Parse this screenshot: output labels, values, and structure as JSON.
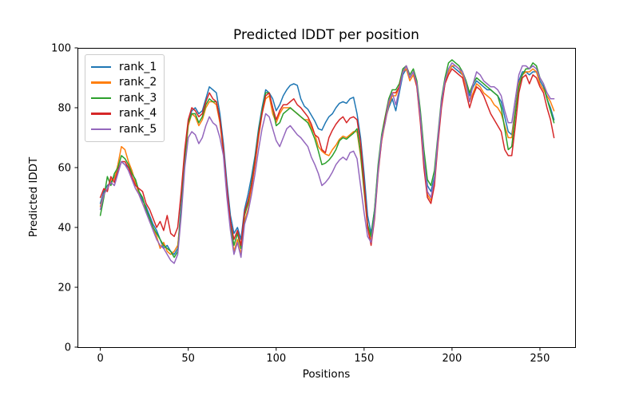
{
  "chart_data": {
    "type": "line",
    "title": "Predicted lDDT per position",
    "xlabel": "Positions",
    "ylabel": "Predicted lDDT",
    "xlim": [
      -13,
      270
    ],
    "ylim": [
      0,
      100
    ],
    "xticks": [
      0,
      50,
      100,
      150,
      200,
      250
    ],
    "yticks": [
      0,
      20,
      40,
      60,
      80,
      100
    ],
    "grid": false,
    "legend_position": "upper left",
    "x": [
      0,
      2,
      4,
      6,
      8,
      10,
      12,
      14,
      16,
      18,
      20,
      22,
      24,
      26,
      28,
      30,
      32,
      34,
      36,
      38,
      40,
      42,
      44,
      46,
      48,
      50,
      52,
      54,
      56,
      58,
      60,
      62,
      64,
      66,
      68,
      70,
      72,
      74,
      76,
      78,
      80,
      82,
      84,
      86,
      88,
      90,
      92,
      94,
      96,
      98,
      100,
      102,
      104,
      106,
      108,
      110,
      112,
      114,
      116,
      118,
      120,
      122,
      124,
      126,
      128,
      130,
      132,
      134,
      136,
      138,
      140,
      142,
      144,
      146,
      148,
      150,
      152,
      154,
      156,
      158,
      160,
      162,
      164,
      166,
      168,
      170,
      172,
      174,
      176,
      178,
      180,
      182,
      184,
      186,
      188,
      190,
      192,
      194,
      196,
      198,
      200,
      202,
      204,
      206,
      208,
      210,
      212,
      214,
      216,
      218,
      220,
      222,
      224,
      226,
      228,
      230,
      232,
      234,
      236,
      238,
      240,
      242,
      244,
      246,
      248,
      250,
      252,
      254,
      256,
      258
    ],
    "series": [
      {
        "name": "rank_1",
        "color": "#1f77b4",
        "values": [
          48,
          52,
          54,
          55,
          57,
          59,
          62,
          61,
          60,
          58,
          56,
          52,
          49,
          47,
          44,
          41,
          39,
          36,
          33,
          34,
          32,
          31,
          33,
          48,
          65,
          75,
          79,
          80,
          78,
          79,
          83,
          87,
          86,
          85,
          78,
          68,
          55,
          44,
          38,
          40,
          36,
          46,
          51,
          57,
          64,
          73,
          80,
          86,
          85,
          83,
          79,
          81,
          84,
          86,
          87.5,
          88,
          87.5,
          83,
          80.5,
          79.5,
          77.5,
          75.5,
          73,
          72.5,
          75,
          77,
          78,
          80,
          81.5,
          82,
          81.5,
          83,
          83.5,
          78,
          70,
          58,
          44,
          38,
          46,
          60,
          70,
          76,
          80,
          83,
          79,
          85,
          91,
          93,
          90,
          92,
          88,
          78,
          64,
          54,
          52,
          57,
          70,
          82,
          89,
          92,
          94,
          93,
          92,
          91,
          88,
          84,
          87,
          89,
          88,
          87,
          86,
          86,
          85,
          84,
          82,
          77,
          72,
          71,
          80,
          89,
          92,
          92,
          91,
          92,
          92,
          89,
          87,
          83,
          80,
          76
        ]
      },
      {
        "name": "rank_2",
        "color": "#ff7f0e",
        "values": [
          47,
          51,
          53,
          56,
          56,
          61,
          67,
          66,
          62,
          59,
          55,
          51,
          48,
          46,
          42,
          40,
          37,
          33,
          35,
          32,
          31,
          32,
          34,
          45,
          62,
          74,
          78,
          77,
          74,
          76,
          80,
          82,
          82,
          81,
          75,
          65,
          51,
          40,
          32,
          36,
          31,
          42,
          46,
          53,
          61,
          70,
          78,
          83,
          84,
          78,
          75,
          78,
          80,
          80,
          80,
          79,
          78,
          77,
          76,
          76,
          73.5,
          71,
          67,
          65.5,
          64.5,
          64,
          66,
          67.5,
          69.5,
          70.5,
          70,
          71,
          72,
          72,
          64,
          52,
          40,
          36,
          44,
          59,
          69,
          75,
          81,
          84,
          84,
          87,
          92,
          93,
          89,
          91,
          87,
          76,
          61,
          51,
          49,
          55,
          69,
          81,
          88,
          92,
          94,
          94,
          93,
          91,
          87,
          82,
          85,
          88,
          87,
          85,
          84,
          83,
          81,
          80,
          78,
          74,
          70,
          70,
          79,
          88,
          91,
          92,
          92,
          93,
          92,
          88,
          86,
          84,
          82,
          79
        ]
      },
      {
        "name": "rank_3",
        "color": "#2ca02c",
        "values": [
          44,
          50,
          57,
          54,
          58,
          60,
          64,
          63,
          61,
          58,
          56,
          52,
          50,
          46,
          43,
          40,
          38,
          36,
          34,
          33,
          32,
          30,
          32,
          46,
          63,
          75,
          78,
          78,
          75,
          77,
          81,
          83,
          82,
          82,
          76,
          66,
          52,
          41,
          34,
          38,
          33,
          44,
          48,
          55,
          63,
          72,
          79,
          85,
          85,
          80,
          74,
          75,
          78,
          79,
          80,
          79,
          78,
          77,
          76,
          75,
          72.5,
          69.5,
          65.5,
          61,
          61.5,
          62.5,
          64,
          66,
          69,
          70,
          69.5,
          70.5,
          71.5,
          73,
          65,
          53,
          41,
          37,
          46,
          61,
          71,
          77,
          83,
          86,
          86,
          88,
          93,
          94,
          91,
          93,
          89,
          79,
          66,
          56,
          54,
          59,
          71,
          83,
          90,
          95,
          96,
          95,
          94,
          92,
          89,
          85,
          88,
          90,
          89,
          88,
          87,
          86,
          85,
          84,
          80,
          73,
          66,
          67,
          78,
          87,
          91,
          93,
          93,
          95,
          94,
          90,
          88,
          83,
          79,
          75
        ]
      },
      {
        "name": "rank_4",
        "color": "#d62728",
        "values": [
          50,
          53,
          52,
          57,
          55,
          59,
          62,
          62,
          60,
          57,
          54,
          53,
          52,
          48,
          46,
          43,
          40,
          42,
          39,
          44,
          38,
          37,
          40,
          52,
          66,
          76,
          80,
          79,
          77,
          78,
          82,
          85,
          83,
          82,
          76,
          66,
          53,
          42,
          36,
          39,
          34,
          45,
          49,
          54,
          62,
          71,
          78,
          84,
          85,
          80,
          76,
          79,
          81,
          81,
          82,
          83,
          81,
          80,
          78.5,
          77,
          74.5,
          71,
          70,
          66,
          65,
          70,
          72.5,
          74.5,
          76,
          77,
          75,
          76.5,
          77,
          76,
          68,
          55,
          40,
          34,
          43,
          58,
          69,
          76,
          82,
          85,
          85,
          87,
          92,
          94,
          90,
          92,
          87,
          75,
          60,
          50,
          48,
          54,
          68,
          80,
          88,
          91,
          93,
          92,
          91,
          90,
          85,
          80,
          84,
          87,
          86,
          84,
          81,
          78,
          76,
          74,
          72,
          66,
          64,
          64,
          74,
          85,
          90,
          91,
          88,
          91,
          90,
          87,
          85,
          80,
          76,
          70
        ]
      },
      {
        "name": "rank_5",
        "color": "#9467bd",
        "values": [
          46,
          51,
          53,
          55,
          54,
          58,
          62,
          61,
          59,
          56,
          53,
          51,
          48,
          45,
          42,
          39,
          36,
          34,
          33,
          31,
          29,
          28,
          31,
          44,
          60,
          70,
          72,
          71,
          68,
          70,
          74,
          77,
          75,
          74,
          70,
          64,
          50,
          39,
          31,
          35,
          30,
          41,
          45,
          51,
          58,
          66,
          73,
          78,
          77,
          73,
          69,
          67,
          70,
          73,
          74,
          72.5,
          71,
          70,
          68.5,
          67,
          63.5,
          61,
          58,
          54,
          55,
          56.5,
          58.5,
          61,
          62.5,
          63.5,
          62.5,
          65,
          65.5,
          63,
          54,
          45,
          37,
          35,
          44,
          59,
          70,
          75,
          82,
          85,
          81,
          86,
          92,
          94,
          90,
          92,
          88,
          77,
          63,
          52,
          50,
          56,
          70,
          82,
          89,
          93,
          95,
          94,
          93,
          92,
          88,
          82,
          88,
          92,
          91,
          89,
          88,
          87,
          87,
          86,
          84,
          79,
          75,
          75,
          83,
          91,
          94,
          94,
          93,
          94,
          93,
          90,
          88,
          85,
          83,
          83
        ]
      }
    ]
  }
}
